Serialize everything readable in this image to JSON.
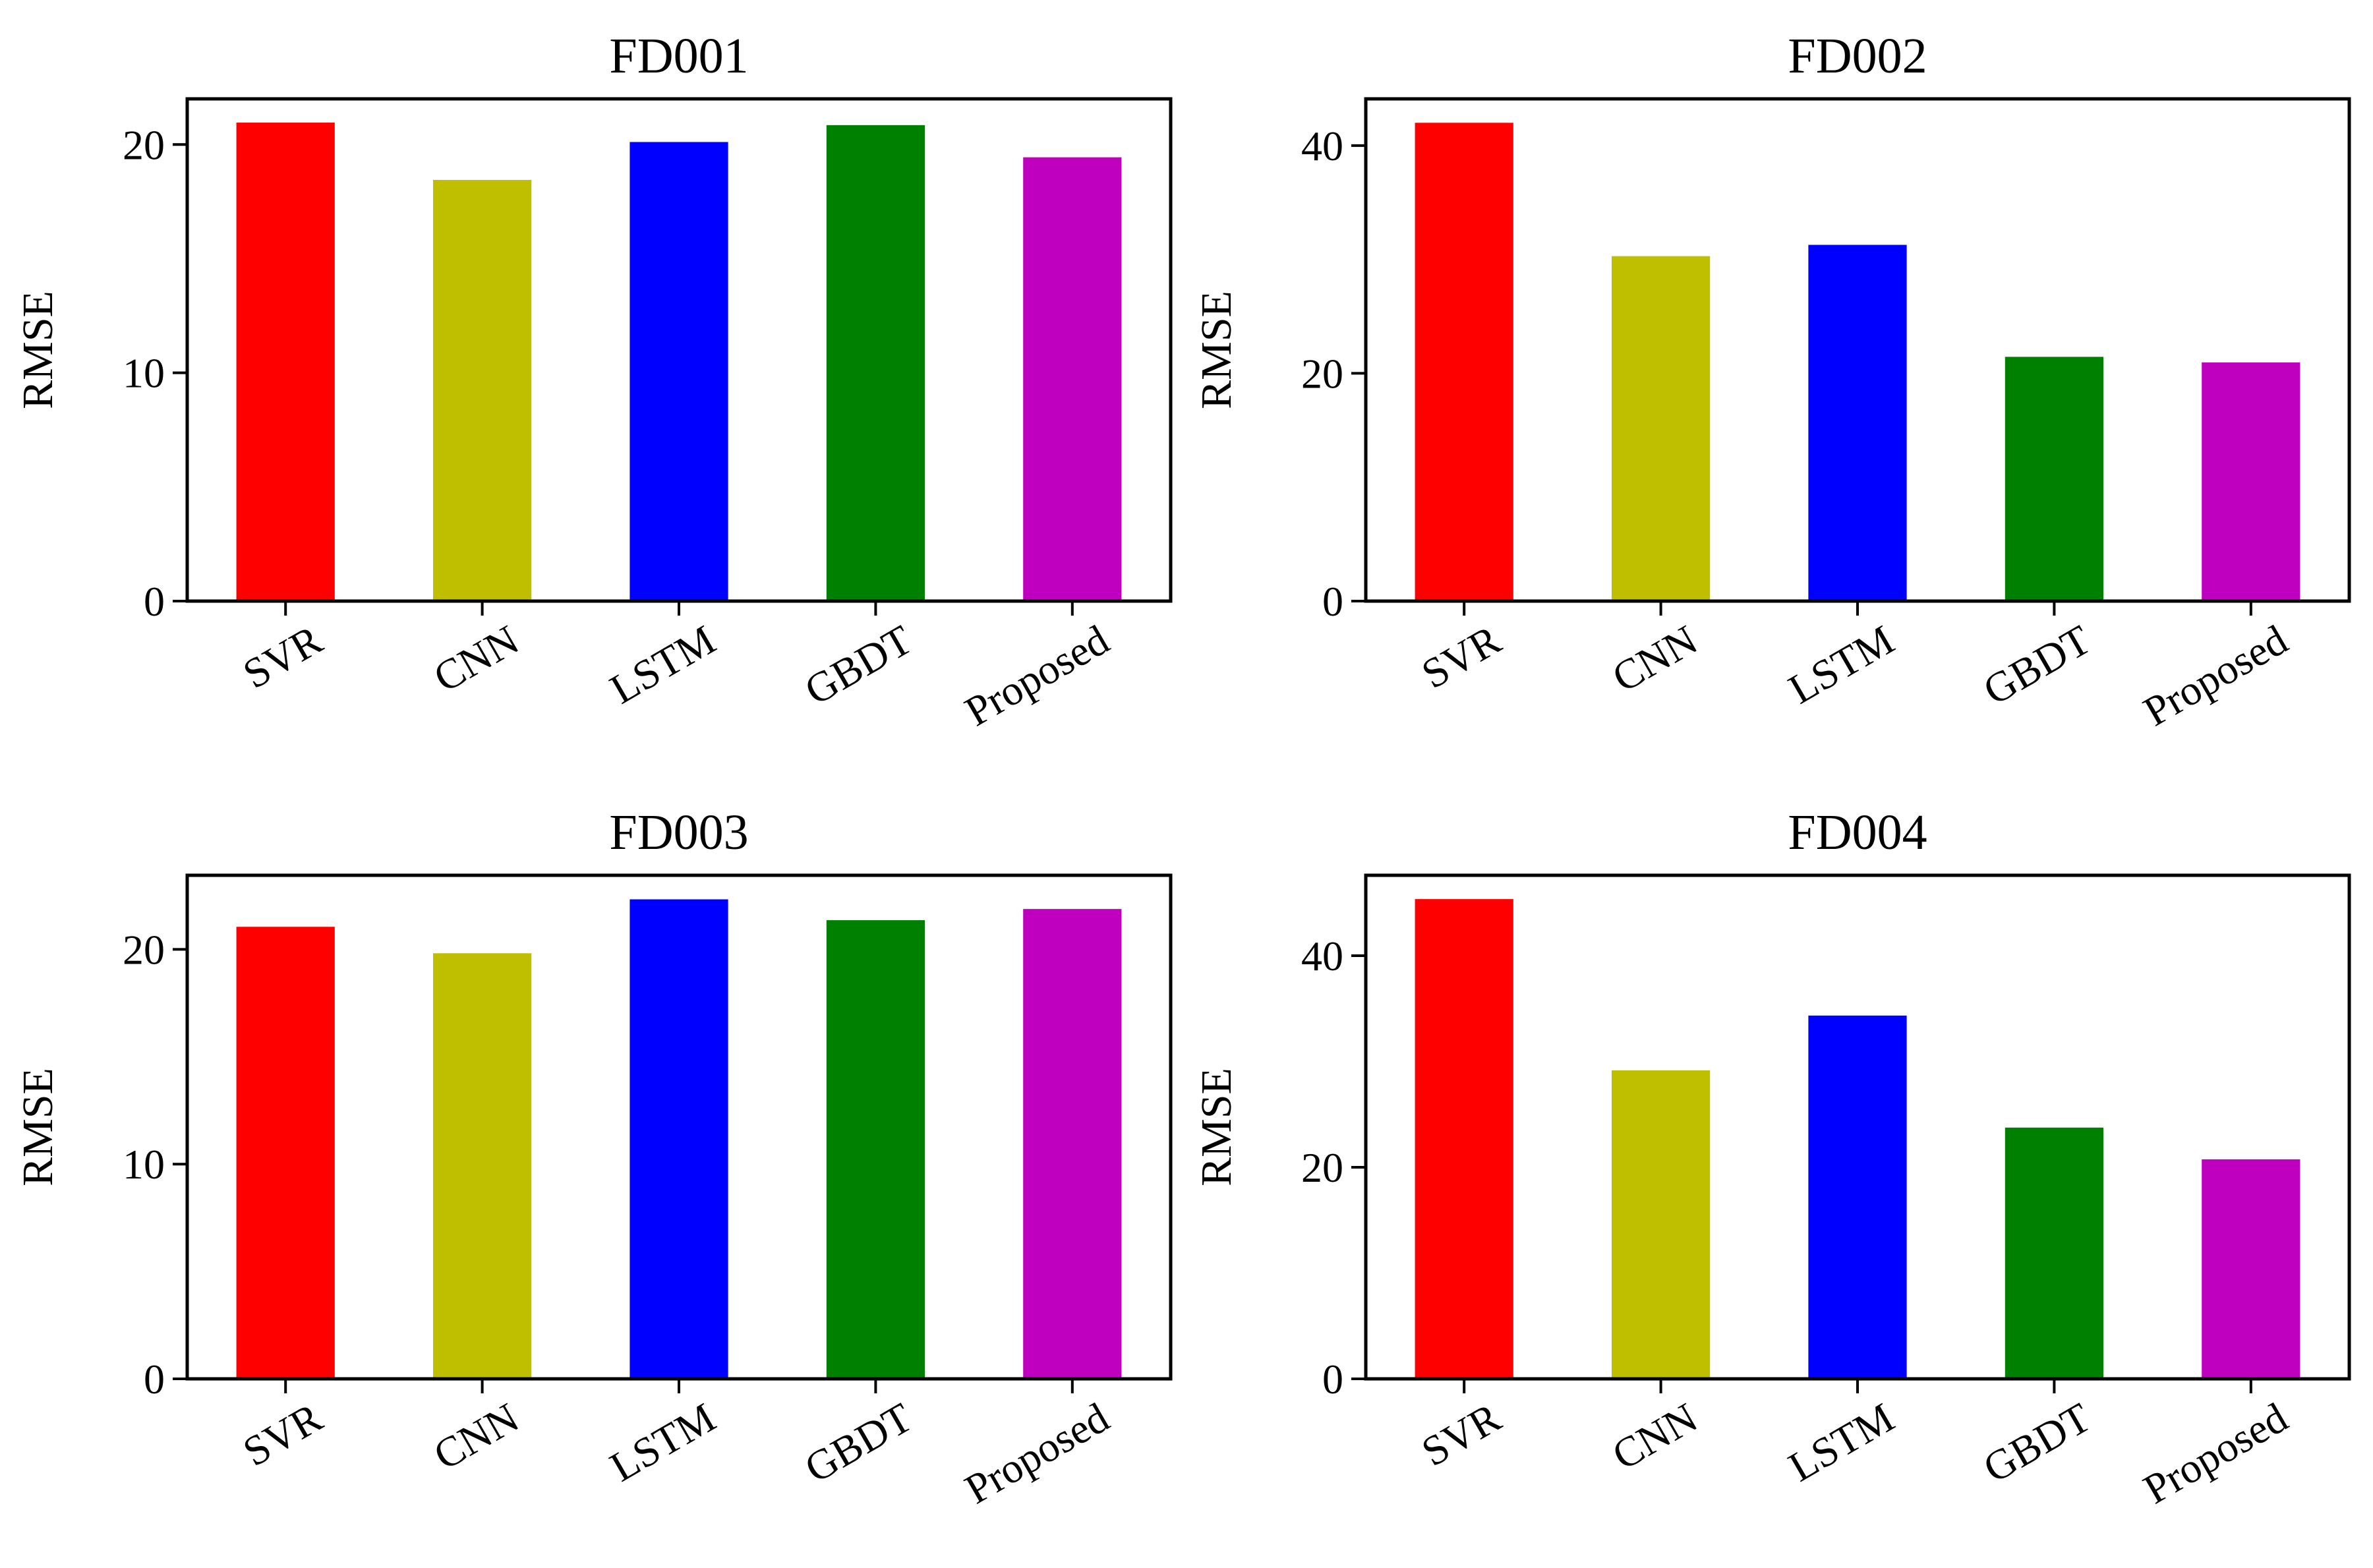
{
  "chart_data": [
    {
      "type": "bar",
      "title": "FD001",
      "xlabel": "",
      "ylabel": "RMSE",
      "categories": [
        "SVR",
        "CNN",
        "LSTM",
        "GBDT",
        "Proposed"
      ],
      "values": [
        20.96,
        18.45,
        20.11,
        20.85,
        19.44
      ],
      "colors": [
        "#ff0000",
        "#bfbf00",
        "#0000ff",
        "#008000",
        "#bf00bf"
      ],
      "ylim": [
        0,
        22.0
      ],
      "yticks": [
        0,
        10,
        20
      ],
      "ytick_labels": [
        "0",
        "10",
        "20"
      ]
    },
    {
      "type": "bar",
      "title": "FD002",
      "xlabel": "",
      "ylabel": "RMSE",
      "categories": [
        "SVR",
        "CNN",
        "LSTM",
        "GBDT",
        "Proposed"
      ],
      "values": [
        42.0,
        30.29,
        31.28,
        21.45,
        20.96
      ],
      "colors": [
        "#ff0000",
        "#bfbf00",
        "#0000ff",
        "#008000",
        "#bf00bf"
      ],
      "ylim": [
        0,
        44.1
      ],
      "yticks": [
        0,
        20,
        40
      ],
      "ytick_labels": [
        "0",
        "20",
        "40"
      ]
    },
    {
      "type": "bar",
      "title": "FD003",
      "xlabel": "",
      "ylabel": "RMSE",
      "categories": [
        "SVR",
        "CNN",
        "LSTM",
        "GBDT",
        "Proposed"
      ],
      "values": [
        21.05,
        19.82,
        22.33,
        21.36,
        21.88
      ],
      "colors": [
        "#ff0000",
        "#bfbf00",
        "#0000ff",
        "#008000",
        "#bf00bf"
      ],
      "ylim": [
        0,
        23.45
      ],
      "yticks": [
        0,
        10,
        20
      ],
      "ytick_labels": [
        "0",
        "10",
        "20"
      ]
    },
    {
      "type": "bar",
      "title": "FD004",
      "xlabel": "",
      "ylabel": "RMSE",
      "categories": [
        "SVR",
        "CNN",
        "LSTM",
        "GBDT",
        "Proposed"
      ],
      "values": [
        45.35,
        29.16,
        34.34,
        23.75,
        20.75
      ],
      "colors": [
        "#ff0000",
        "#bfbf00",
        "#0000ff",
        "#008000",
        "#bf00bf"
      ],
      "ylim": [
        0,
        47.6
      ],
      "yticks": [
        0,
        20,
        40
      ],
      "ytick_labels": [
        "0",
        "20",
        "40"
      ]
    }
  ]
}
